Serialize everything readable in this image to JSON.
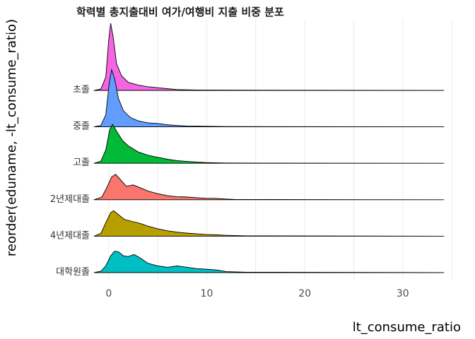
{
  "chart_data": {
    "type": "area",
    "subtype": "ridgeline",
    "title": "학력별 총지출대비 여가/여행비 지출 비중 분포",
    "xlabel": "lt_consume_ratio",
    "ylabel": "reorder(eduname, -lt_consume_ratio)",
    "xlim": [
      -1.5,
      34.2
    ],
    "x_ticks": [
      0,
      10,
      20,
      30
    ],
    "grid": true,
    "legend": "none",
    "series": [
      {
        "name": "초졸",
        "color": "#F564E3",
        "points": [
          [
            -1.5,
            0
          ],
          [
            -0.8,
            0.02
          ],
          [
            -0.3,
            0.2
          ],
          [
            0.0,
            0.75
          ],
          [
            0.2,
            1.0
          ],
          [
            0.45,
            0.8
          ],
          [
            0.8,
            0.4
          ],
          [
            1.3,
            0.22
          ],
          [
            2.0,
            0.12
          ],
          [
            3.0,
            0.08
          ],
          [
            4.0,
            0.055
          ],
          [
            5.0,
            0.04
          ],
          [
            6.0,
            0.025
          ],
          [
            7.0,
            0.012
          ],
          [
            9.0,
            0.006
          ],
          [
            12.0,
            0.004
          ],
          [
            34.2,
            0
          ]
        ]
      },
      {
        "name": "중졸",
        "color": "#619CFF",
        "points": [
          [
            -1.5,
            0
          ],
          [
            -0.8,
            0.02
          ],
          [
            -0.3,
            0.18
          ],
          [
            0.05,
            0.65
          ],
          [
            0.3,
            0.85
          ],
          [
            0.6,
            0.72
          ],
          [
            1.0,
            0.42
          ],
          [
            1.5,
            0.24
          ],
          [
            2.2,
            0.14
          ],
          [
            3.0,
            0.09
          ],
          [
            4.0,
            0.06
          ],
          [
            5.0,
            0.05
          ],
          [
            6.0,
            0.03
          ],
          [
            7.0,
            0.02
          ],
          [
            8.0,
            0.012
          ],
          [
            10.0,
            0.008
          ],
          [
            12.0,
            0.004
          ],
          [
            34.2,
            0
          ]
        ]
      },
      {
        "name": "고졸",
        "color": "#00BA38",
        "points": [
          [
            -1.5,
            0
          ],
          [
            -0.8,
            0.03
          ],
          [
            -0.3,
            0.2
          ],
          [
            0.1,
            0.5
          ],
          [
            0.4,
            0.58
          ],
          [
            0.8,
            0.48
          ],
          [
            1.4,
            0.34
          ],
          [
            2.0,
            0.26
          ],
          [
            3.0,
            0.17
          ],
          [
            4.0,
            0.12
          ],
          [
            5.0,
            0.09
          ],
          [
            6.0,
            0.06
          ],
          [
            7.0,
            0.04
          ],
          [
            8.0,
            0.028
          ],
          [
            9.0,
            0.018
          ],
          [
            10.0,
            0.01
          ],
          [
            12.0,
            0.004
          ],
          [
            34.2,
            0
          ]
        ]
      },
      {
        "name": "2년제대졸",
        "color": "#F8766D",
        "points": [
          [
            -1.5,
            0
          ],
          [
            -0.7,
            0.04
          ],
          [
            -0.2,
            0.18
          ],
          [
            0.3,
            0.34
          ],
          [
            0.7,
            0.38
          ],
          [
            1.2,
            0.3
          ],
          [
            1.8,
            0.2
          ],
          [
            2.5,
            0.22
          ],
          [
            3.2,
            0.18
          ],
          [
            4.0,
            0.13
          ],
          [
            5.0,
            0.09
          ],
          [
            6.0,
            0.06
          ],
          [
            7.0,
            0.045
          ],
          [
            8.0,
            0.04
          ],
          [
            9.0,
            0.03
          ],
          [
            10.0,
            0.022
          ],
          [
            11.0,
            0.02
          ],
          [
            12.0,
            0.01
          ],
          [
            13.0,
            0.004
          ],
          [
            34.2,
            0
          ]
        ]
      },
      {
        "name": "4년제대졸",
        "color": "#B79F00",
        "points": [
          [
            -1.5,
            0
          ],
          [
            -0.8,
            0.04
          ],
          [
            -0.3,
            0.2
          ],
          [
            0.2,
            0.35
          ],
          [
            0.5,
            0.38
          ],
          [
            1.0,
            0.32
          ],
          [
            1.6,
            0.25
          ],
          [
            2.4,
            0.22
          ],
          [
            3.2,
            0.19
          ],
          [
            4.0,
            0.15
          ],
          [
            5.0,
            0.11
          ],
          [
            6.0,
            0.08
          ],
          [
            7.0,
            0.06
          ],
          [
            8.0,
            0.045
          ],
          [
            9.0,
            0.035
          ],
          [
            10.0,
            0.025
          ],
          [
            11.0,
            0.02
          ],
          [
            12.0,
            0.013
          ],
          [
            14.0,
            0.005
          ],
          [
            34.2,
            0
          ]
        ]
      },
      {
        "name": "대학원졸",
        "color": "#00BFC4",
        "points": [
          [
            -1.5,
            0
          ],
          [
            -0.8,
            0.02
          ],
          [
            -0.3,
            0.1
          ],
          [
            0.2,
            0.25
          ],
          [
            0.6,
            0.32
          ],
          [
            1.0,
            0.31
          ],
          [
            1.5,
            0.25
          ],
          [
            2.0,
            0.24
          ],
          [
            2.6,
            0.27
          ],
          [
            3.2,
            0.22
          ],
          [
            4.0,
            0.14
          ],
          [
            5.0,
            0.1
          ],
          [
            6.0,
            0.08
          ],
          [
            7.0,
            0.1
          ],
          [
            8.0,
            0.08
          ],
          [
            9.0,
            0.06
          ],
          [
            10.0,
            0.05
          ],
          [
            11.0,
            0.04
          ],
          [
            12.0,
            0.015
          ],
          [
            14.0,
            0.006
          ],
          [
            34.2,
            0
          ]
        ]
      }
    ]
  }
}
